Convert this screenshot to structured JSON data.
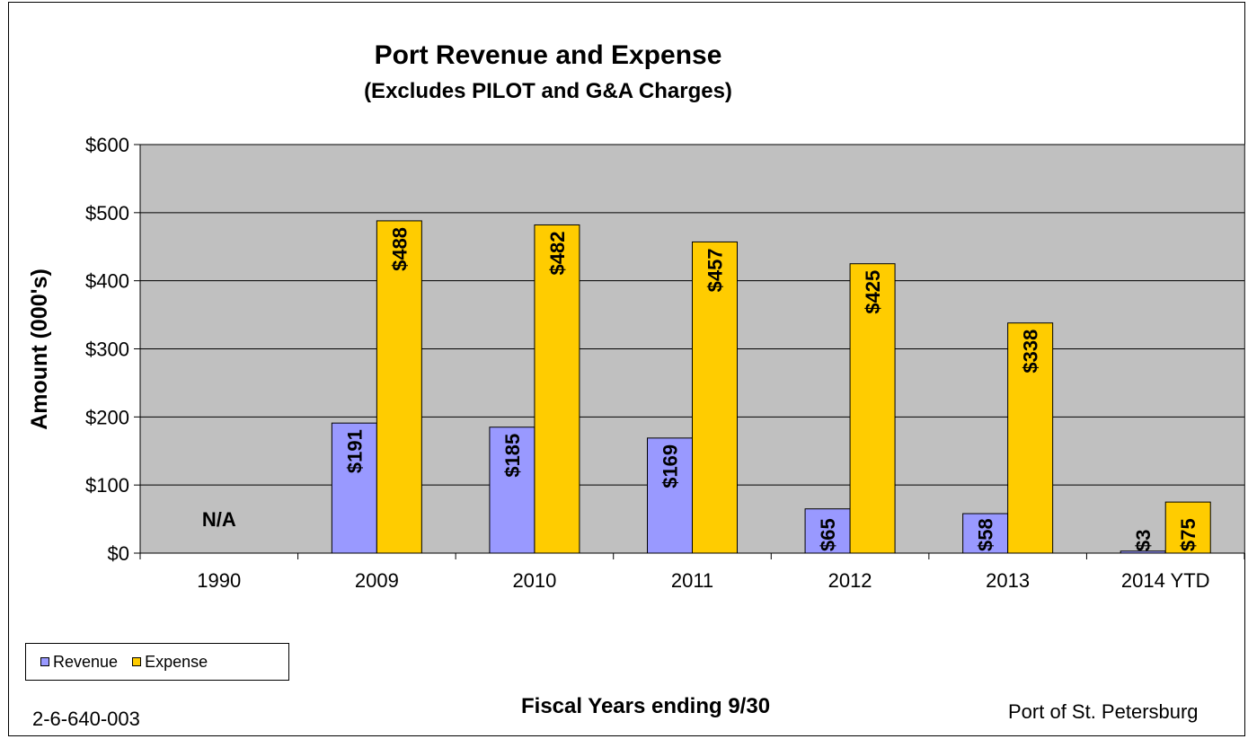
{
  "chart_data": {
    "type": "bar",
    "title": "Port Revenue and Expense",
    "subtitle": "(Excludes PILOT and G&A Charges)",
    "xlabel": "Fiscal Years ending 9/30",
    "ylabel": "Amount (000's)",
    "ylim": [
      0,
      600
    ],
    "yticks": [
      0,
      100,
      200,
      300,
      400,
      500,
      600
    ],
    "ytick_labels": [
      "$0",
      "$100",
      "$200",
      "$300",
      "$400",
      "$500",
      "$600"
    ],
    "grid": true,
    "legend_position": "bottom-left",
    "categories": [
      "1990",
      "2009",
      "2010",
      "2011",
      "2012",
      "2013",
      "2014 YTD"
    ],
    "series": [
      {
        "name": "Revenue",
        "color": "#9999ff",
        "values": [
          null,
          191,
          185,
          169,
          65,
          58,
          3
        ],
        "labels": [
          "",
          "$191",
          "$185",
          "$169",
          "$65",
          "$58",
          "$3"
        ]
      },
      {
        "name": "Expense",
        "color": "#ffcc00",
        "values": [
          null,
          488,
          482,
          457,
          425,
          338,
          75
        ],
        "labels": [
          "",
          "$488",
          "$482",
          "$457",
          "$425",
          "$338",
          "$75"
        ]
      }
    ],
    "annotations": [
      "N/A"
    ],
    "plot_background": "#c0c0c0"
  },
  "footer": {
    "code": "2-6-640-003",
    "organization": "Port of St. Petersburg"
  }
}
